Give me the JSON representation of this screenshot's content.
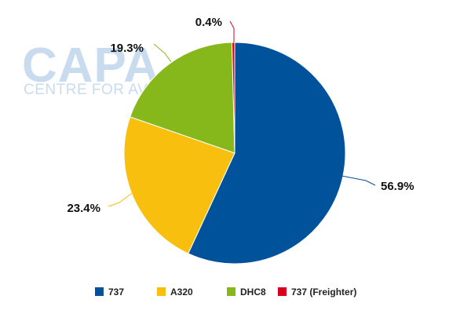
{
  "watermark": {
    "logo_text": "CAPA",
    "tagline_text": "CENTRE FOR AVIATION",
    "color": "#c9dbee"
  },
  "chart_data": {
    "type": "pie",
    "title": "",
    "legend_position": "bottom",
    "start_angle_deg": 0,
    "direction": "clockwise",
    "slices": [
      {
        "name": "737",
        "value": 56.9,
        "label": "56.9%",
        "color": "#00529b"
      },
      {
        "name": "A320",
        "value": 23.4,
        "label": "23.4%",
        "color": "#f8bf0f"
      },
      {
        "name": "DHC8",
        "value": 19.3,
        "label": "19.3%",
        "color": "#86b81b"
      },
      {
        "name": "737 (Freighter)",
        "value": 0.4,
        "label": "0.4%",
        "color": "#d9001b"
      }
    ]
  }
}
